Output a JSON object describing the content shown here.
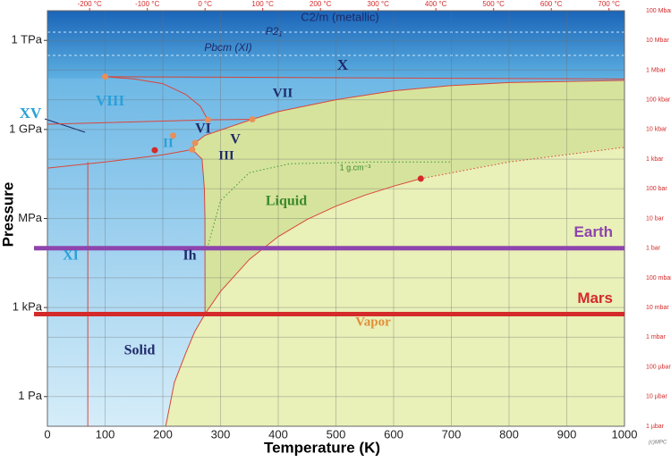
{
  "chart_data": {
    "type": "phase-diagram",
    "x_label": "Temperature (K)",
    "y_label": "Pressure",
    "xlim": [
      0,
      1000
    ],
    "xticks": [
      0,
      100,
      200,
      300,
      400,
      500,
      600,
      700,
      800,
      900,
      1000
    ],
    "x2lim": [
      0,
      1000
    ],
    "x2ticks": [
      {
        "value": 73.15,
        "label": "-200 °C"
      },
      {
        "value": 173.15,
        "label": "-100 °C"
      },
      {
        "value": 273.15,
        "label": "0 °C"
      },
      {
        "value": 373.15,
        "label": "100 °C"
      },
      {
        "value": 473.15,
        "label": "200 °C"
      },
      {
        "value": 573.15,
        "label": "300 °C"
      },
      {
        "value": 673.15,
        "label": "400 °C"
      },
      {
        "value": 773.15,
        "label": "500 °C"
      },
      {
        "value": 873.15,
        "label": "600 °C"
      },
      {
        "value": 973.15,
        "label": "700 °C"
      }
    ],
    "ylim": [
      0.1,
      10000000000000
    ],
    "log_y": true,
    "yticks": [
      {
        "value": 1,
        "label": "1 Pa"
      },
      {
        "value": 1000,
        "label": "1 kPa"
      },
      {
        "value": 1000000,
        "label": "MPa"
      },
      {
        "value": 1000000000,
        "label": "1 GPa"
      },
      {
        "value": 1000000000000,
        "label": "1 TPa"
      }
    ],
    "y2lim": [
      0.1,
      10000000000000
    ],
    "y2ticks": [
      {
        "value": 0.1,
        "label": "1 µbar"
      },
      {
        "value": 1,
        "label": "10 µbar"
      },
      {
        "value": 10,
        "label": "100 µbar"
      },
      {
        "value": 100,
        "label": "1 mbar"
      },
      {
        "value": 1000,
        "label": "10 mbar"
      },
      {
        "value": 10000,
        "label": "100 mbar"
      },
      {
        "value": 100000,
        "label": "1 bar"
      },
      {
        "value": 1000000,
        "label": "10 bar"
      },
      {
        "value": 10000000,
        "label": "100 bar"
      },
      {
        "value": 100000000,
        "label": "1 kbar"
      },
      {
        "value": 1000000000,
        "label": "10 kbar"
      },
      {
        "value": 10000000000,
        "label": "100 kbar"
      },
      {
        "value": 100000000000,
        "label": "1 Mbar"
      },
      {
        "value": 1000000000000,
        "label": "10 Mbar"
      },
      {
        "value": 10000000000000,
        "label": "100 Mbar"
      }
    ],
    "grid": true,
    "boundaries": [
      {
        "color": "#d9463a",
        "x": [
          205,
          220,
          240,
          255,
          273.16
        ],
        "values": [
          0.1,
          3,
          30,
          150,
          611
        ]
      },
      {
        "color": "#d9463a",
        "x": [
          273.16,
          300,
          350,
          400,
          450,
          500,
          550,
          600,
          647
        ],
        "values": [
          611,
          3500,
          42000,
          245000,
          930000,
          2600000,
          6100000,
          12300000,
          22000000
        ]
      },
      {
        "color": "#d9463a",
        "x": [
          273.16,
          273,
          272,
          268,
          251
        ],
        "values": [
          611,
          1000000,
          10000000,
          100000000,
          210000000
        ]
      },
      {
        "color": "#d9463a",
        "x": [
          251,
          256,
          273,
          355,
          400,
          500,
          600,
          700,
          800,
          1000
        ],
        "values": [
          210000000,
          350000000,
          630000000,
          2200000000,
          4000000000,
          10000000000,
          20000000000,
          30000000000,
          38000000000,
          45000000000
        ]
      },
      {
        "color": "#d9463a",
        "x": [
          70,
          70
        ],
        "values": [
          0.1,
          80000000
        ]
      },
      {
        "color": "#d9463a",
        "x": [
          0,
          100,
          200,
          251
        ],
        "values": [
          50000000,
          80000000,
          140000000,
          210000000
        ]
      },
      {
        "color": "#d9463a",
        "x": [
          100,
          150,
          200,
          240,
          265,
          278
        ],
        "values": [
          60000000000,
          50000000000,
          35000000000,
          15000000000,
          6000000000,
          2100000000
        ]
      },
      {
        "color": "#d9463a",
        "x": [
          100,
          1000
        ],
        "values": [
          60000000000,
          50000000000
        ]
      },
      {
        "color": "#d9463a",
        "x": [
          0,
          278,
          355
        ],
        "values": [
          1500000000,
          2100000000,
          2200000000
        ]
      },
      {
        "color": "#3a9a3a",
        "style": "dotted",
        "x": [
          277,
          300,
          350,
          420,
          560,
          700
        ],
        "values": [
          100000,
          4000000,
          35000000,
          70000000,
          80000000,
          80000000
        ]
      },
      {
        "color": "#d9463a",
        "style": "dotted",
        "x": [
          647,
          800,
          1000
        ],
        "values": [
          22000000,
          80000000,
          250000000
        ]
      }
    ],
    "points": [
      {
        "x": 100,
        "value": 60000000000,
        "color": "#e8905a"
      },
      {
        "x": 278,
        "value": 2100000000,
        "color": "#e8905a"
      },
      {
        "x": 355,
        "value": 2200000000,
        "color": "#e8905a"
      },
      {
        "x": 218,
        "value": 620000000,
        "color": "#e8905a"
      },
      {
        "x": 251,
        "value": 210000000,
        "color": "#e8905a"
      },
      {
        "x": 256,
        "value": 350000000,
        "color": "#e8905a"
      },
      {
        "x": 186,
        "value": 200000000,
        "color": "#d42a2a"
      },
      {
        "x": 647,
        "value": 22000000,
        "color": "#d42a2a"
      }
    ],
    "levels": [
      {
        "name": "Earth",
        "value": 100000,
        "color": "#8e44ad"
      },
      {
        "name": "Mars",
        "value": 600,
        "color": "#d42a2a"
      }
    ],
    "annotations": [
      "C2/m (metallic)",
      "P2₁",
      "Pbcm (XI)",
      "X",
      "VII",
      "VIII",
      "XV",
      "VI",
      "V",
      "II",
      "III",
      "Liquid",
      "Ih",
      "XI",
      "Solid",
      "Vapor",
      "1 g.cm⁻³",
      "(c)MPC"
    ]
  }
}
